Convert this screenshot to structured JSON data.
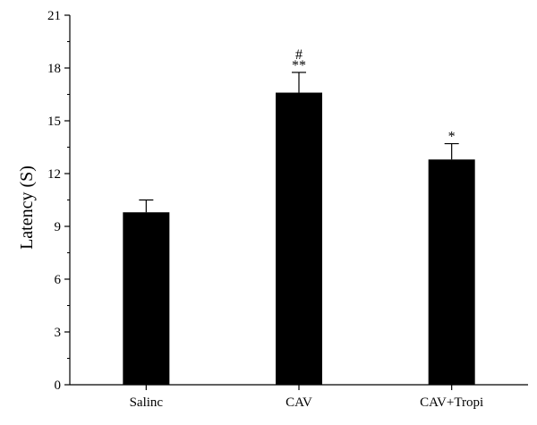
{
  "chart_data": {
    "type": "bar",
    "categories": [
      "Salinc",
      "CAV",
      "CAV+Tropi"
    ],
    "values": [
      9.8,
      16.6,
      12.8
    ],
    "errors": [
      0.7,
      1.15,
      0.9
    ],
    "annotations": [
      "",
      "**",
      "*"
    ],
    "annotations_top": [
      "",
      "#",
      ""
    ],
    "ylabel": "Latency (S)",
    "xlabel": "",
    "ylim": [
      0,
      21
    ],
    "yticks": [
      0,
      3,
      6,
      9,
      12,
      15,
      18,
      21
    ],
    "bar_color": "#000000",
    "grid": false
  }
}
